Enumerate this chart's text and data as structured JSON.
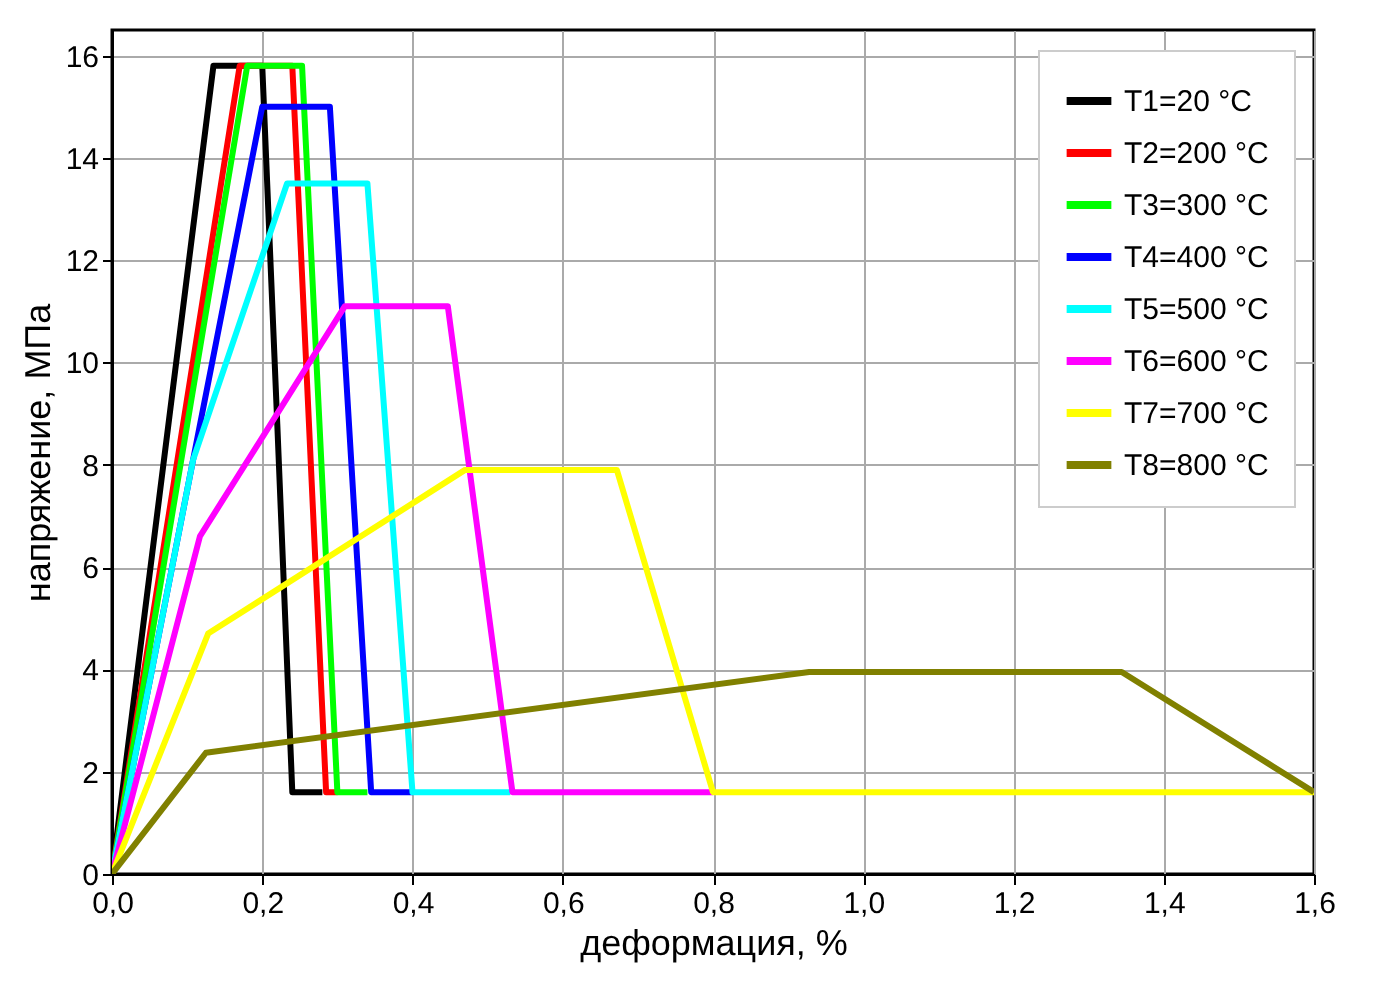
{
  "chart_data": {
    "type": "line",
    "xlabel": "деформация, %",
    "ylabel": "напряжение, МПа",
    "xlim": [
      0,
      1.6
    ],
    "ylim": [
      0,
      16.5
    ],
    "xticks": [
      {
        "value": 0,
        "label": "0,0"
      },
      {
        "value": 0.2,
        "label": "0,2"
      },
      {
        "value": 0.4,
        "label": "0,4"
      },
      {
        "value": 0.6,
        "label": "0,6"
      },
      {
        "value": 0.8,
        "label": "0,8"
      },
      {
        "value": 1.0,
        "label": "1,0"
      },
      {
        "value": 1.2,
        "label": "1,2"
      },
      {
        "value": 1.4,
        "label": "1,4"
      },
      {
        "value": 1.6,
        "label": "1,6"
      }
    ],
    "yticks": [
      0,
      2,
      4,
      6,
      8,
      10,
      12,
      14,
      16
    ],
    "grid": true,
    "legend": "top right",
    "marker": "none",
    "line_style": "solid",
    "series": [
      {
        "name": "T1=20 °C",
        "color": "#000000",
        "x": [
          0,
          0.135,
          0.2,
          0.22,
          0.24,
          0.28
        ],
        "values": [
          0,
          15.8,
          15.8,
          8.8,
          1.6,
          1.6
        ]
      },
      {
        "name": "T2=200 °C",
        "color": "#ff0000",
        "x": [
          0,
          0.17,
          0.24,
          0.285,
          0.3
        ],
        "values": [
          0,
          15.8,
          15.8,
          1.6,
          1.6
        ]
      },
      {
        "name": "T3=300 °C",
        "color": "#00ff00",
        "x": [
          0,
          0.18,
          0.253,
          0.3,
          0.34
        ],
        "values": [
          0,
          15.8,
          15.8,
          1.6,
          1.6
        ]
      },
      {
        "name": "T4=400 °C",
        "color": "#0000ff",
        "x": [
          0,
          0.2,
          0.29,
          0.345,
          0.4
        ],
        "values": [
          0,
          15,
          15,
          1.6,
          1.6
        ]
      },
      {
        "name": "T5=500 °C",
        "color": "#00ffff",
        "x": [
          0,
          0.108,
          0.233,
          0.34,
          0.4,
          0.53
        ],
        "values": [
          0,
          8.1,
          13.5,
          13.5,
          1.6,
          1.6
        ]
      },
      {
        "name": "T6=600 °C",
        "color": "#ff00ff",
        "x": [
          0,
          0.117,
          0.31,
          0.447,
          0.533,
          0.8
        ],
        "values": [
          0,
          6.6,
          11.1,
          11.1,
          1.6,
          1.6
        ]
      },
      {
        "name": "T7=700 °C",
        "color": "#ffff00",
        "x": [
          0,
          0.128,
          0.47,
          0.672,
          0.8,
          1.6
        ],
        "values": [
          0,
          4.7,
          7.9,
          7.9,
          1.6,
          1.6
        ]
      },
      {
        "name": "T8=800 °C",
        "color": "#808000",
        "x": [
          0,
          0.125,
          0.928,
          1.344,
          1.6
        ],
        "values": [
          0,
          2.37,
          3.95,
          3.95,
          1.6
        ]
      }
    ]
  }
}
